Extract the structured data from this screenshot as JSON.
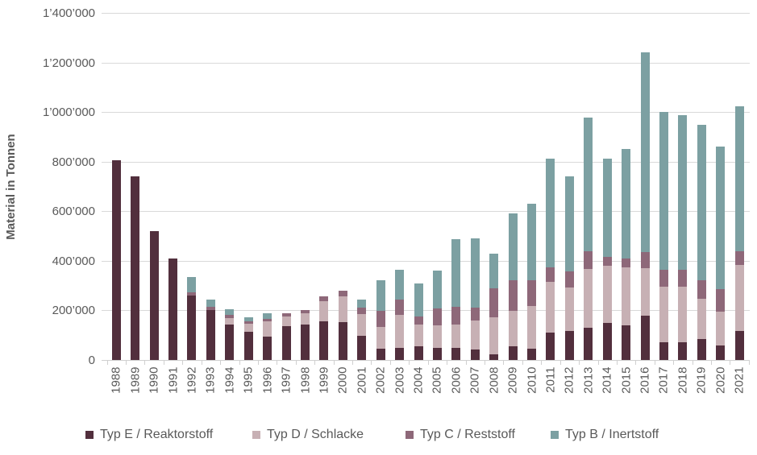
{
  "chart": {
    "y_tick_labels": [
      "1’400’000",
      "1’200’000",
      "1’000’000",
      "800’000",
      "600’000",
      "400’000",
      "200’000",
      "0"
    ],
    "colors": {
      "typ_e": "#522f3d",
      "typ_d": "#c7b0b4",
      "typ_c": "#8e6879",
      "typ_b": "#7ca0a2",
      "gridline": "#d9d9d9",
      "text": "#595959"
    }
  },
  "chart_data": {
    "type": "bar",
    "stacked": true,
    "title": "",
    "xlabel": "",
    "ylabel": "Material in Tonnen",
    "ylim": [
      0,
      1400000
    ],
    "y_tick_step": 200000,
    "grid": true,
    "legend_position": "bottom",
    "categories": [
      1988,
      1989,
      1990,
      1991,
      1992,
      1993,
      1994,
      1995,
      1996,
      1997,
      1998,
      1999,
      2000,
      2001,
      2002,
      2003,
      2004,
      2005,
      2006,
      2007,
      2008,
      2009,
      2010,
      2011,
      2012,
      2013,
      2014,
      2015,
      2016,
      2017,
      2018,
      2019,
      2020,
      2021
    ],
    "series": [
      {
        "name": "Typ E / Reaktorstoff",
        "color": "#522f3d",
        "values": [
          805000,
          740000,
          519000,
          409000,
          260000,
          200000,
          143000,
          114000,
          95000,
          137000,
          143000,
          157000,
          152000,
          96000,
          44000,
          50000,
          54000,
          50000,
          48000,
          43000,
          24000,
          54000,
          45000,
          112000,
          116000,
          130000,
          150000,
          139000,
          178000,
          70000,
          72000,
          85000,
          58000,
          116000
        ]
      },
      {
        "name": "Typ D / Schlacke",
        "color": "#c7b0b4",
        "values": [
          0,
          0,
          0,
          0,
          0,
          0,
          27000,
          31000,
          62000,
          38000,
          46000,
          80000,
          105000,
          88000,
          88000,
          131000,
          88000,
          91000,
          95000,
          115000,
          149000,
          145000,
          173000,
          203000,
          176000,
          238000,
          230000,
          236000,
          192000,
          224000,
          222000,
          162000,
          136000,
          267000
        ]
      },
      {
        "name": "Typ C / Reststoff",
        "color": "#8e6879",
        "values": [
          0,
          0,
          0,
          0,
          13000,
          15000,
          13000,
          12000,
          10000,
          13000,
          13000,
          20000,
          23000,
          28000,
          66000,
          62000,
          33000,
          66000,
          71000,
          54000,
          115000,
          123000,
          104000,
          57000,
          64000,
          69000,
          36000,
          35000,
          65000,
          70000,
          70000,
          76000,
          92000,
          57000
        ]
      },
      {
        "name": "Typ B / Inertstoff",
        "color": "#7ca0a2",
        "values": [
          0,
          0,
          0,
          0,
          62000,
          30000,
          21000,
          15000,
          20000,
          0,
          0,
          0,
          0,
          33000,
          123000,
          120000,
          134000,
          154000,
          274000,
          278000,
          140000,
          268000,
          308000,
          441000,
          386000,
          541000,
          396000,
          440000,
          805000,
          636000,
          623000,
          627000,
          575000,
          582000
        ]
      }
    ]
  }
}
